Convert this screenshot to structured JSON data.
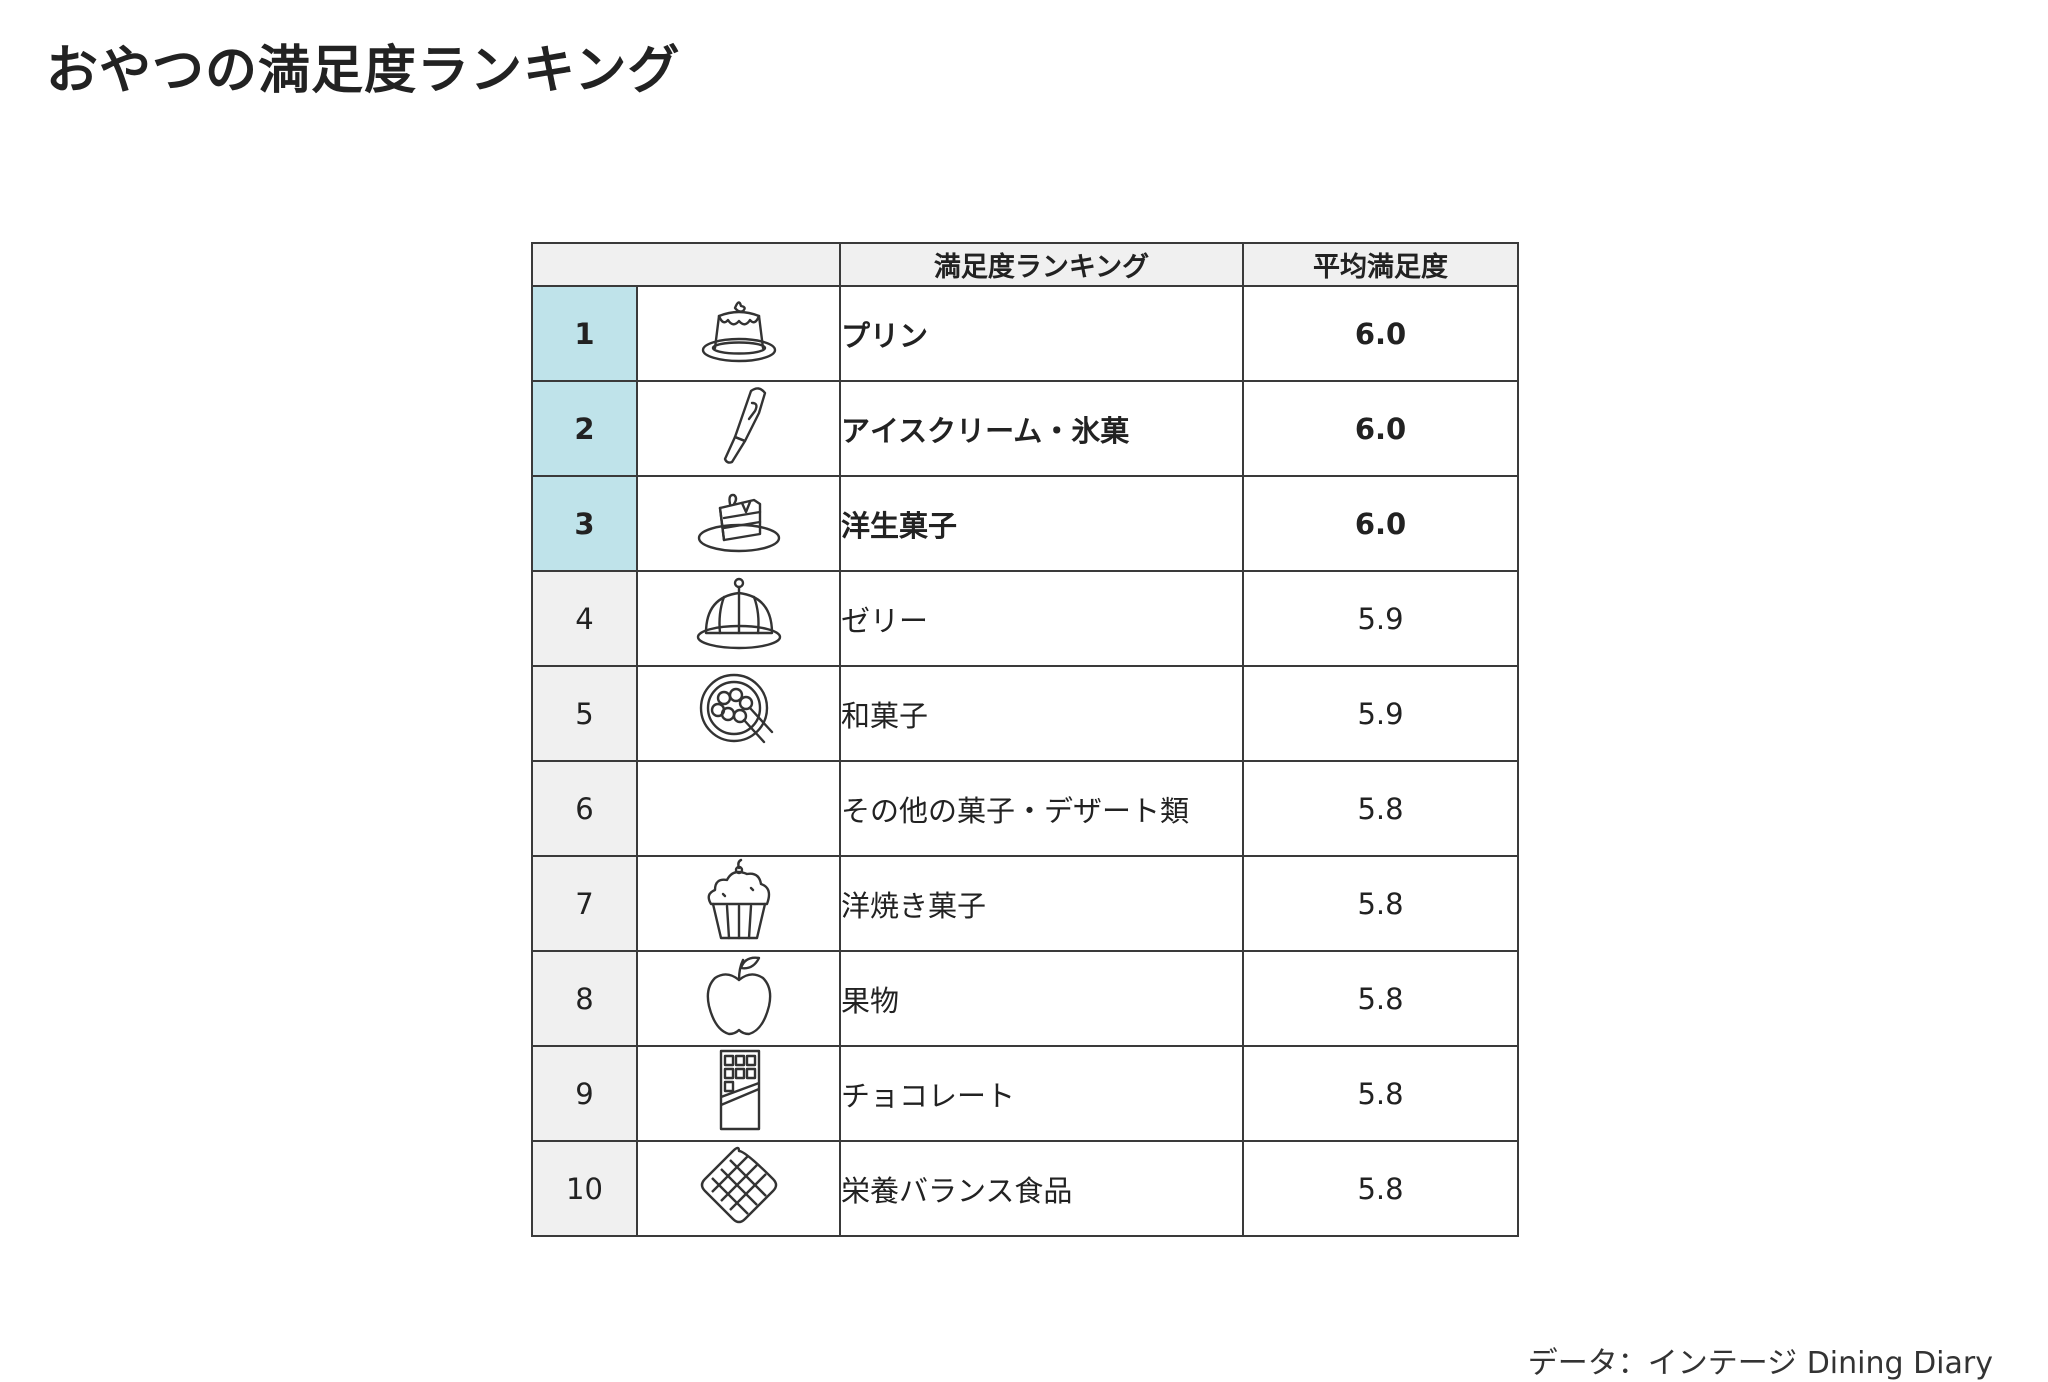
{
  "title": "おやつの満足度ランキング",
  "chart_data": {
    "type": "table",
    "columns": [
      "",
      "満足度ランキング",
      "平均満足度"
    ],
    "rows": [
      {
        "rank": "1",
        "icon": "pudding-icon",
        "name": "プリン",
        "score": "6.0",
        "highlight": true
      },
      {
        "rank": "2",
        "icon": "popsicle-icon",
        "name": "アイスクリーム・氷菓",
        "score": "6.0",
        "highlight": true
      },
      {
        "rank": "3",
        "icon": "cake-slice-icon",
        "name": "洋生菓子",
        "score": "6.0",
        "highlight": true
      },
      {
        "rank": "4",
        "icon": "jelly-icon",
        "name": "ゼリー",
        "score": "5.9",
        "highlight": false
      },
      {
        "rank": "5",
        "icon": "dango-icon",
        "name": "和菓子",
        "score": "5.9",
        "highlight": false
      },
      {
        "rank": "6",
        "icon": "",
        "name": "その他の菓子・デザート類",
        "score": "5.8",
        "highlight": false
      },
      {
        "rank": "7",
        "icon": "cupcake-icon",
        "name": "洋焼き菓子",
        "score": "5.8",
        "highlight": false
      },
      {
        "rank": "8",
        "icon": "apple-icon",
        "name": "果物",
        "score": "5.8",
        "highlight": false
      },
      {
        "rank": "9",
        "icon": "chocolate-bar-icon",
        "name": "チョコレート",
        "score": "5.8",
        "highlight": false
      },
      {
        "rank": "10",
        "icon": "waffle-icon",
        "name": "栄養バランス食品",
        "score": "5.8",
        "highlight": false
      }
    ],
    "highlight_color": "#bfe3ea",
    "header_color": "#f0f0f0"
  },
  "source": "データ：インテージ Dining Diary"
}
